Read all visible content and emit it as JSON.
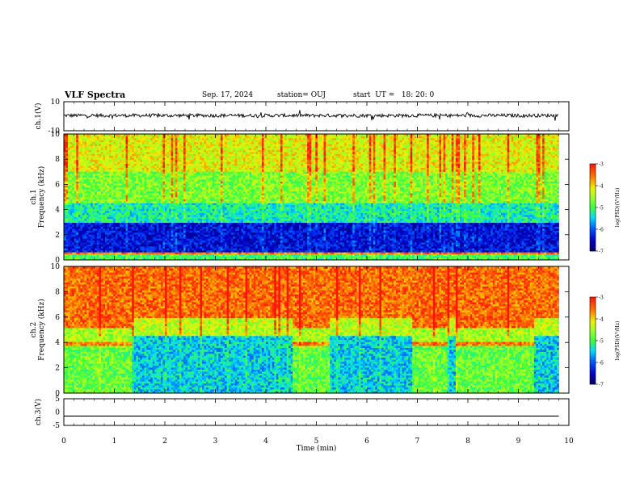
{
  "header": {
    "title": "VLF Spectra",
    "date": "Sep. 17, 2024",
    "station": "station= OUJ",
    "start": "start  UT =   18: 20: 0"
  },
  "colorbar": {
    "label": "log(PSD)(V²/Hz)",
    "ticks": [
      "-3",
      "-4",
      "-5",
      "-6",
      "-7"
    ],
    "range": [
      -7,
      -3
    ]
  },
  "colors": {
    "low": "#00008b",
    "mid_low": "#0040ff",
    "cyan": "#00e0ff",
    "green": "#40ff40",
    "yellow": "#f0f000",
    "red": "#ff2000"
  },
  "chart_data": [
    {
      "type": "line",
      "panel": "ch1-waveform",
      "ylabel": "ch.1(V)",
      "yticks": [
        "10",
        "-10"
      ],
      "ylim": [
        -10,
        10
      ],
      "xlim": [
        0,
        10
      ],
      "baseline": 0.5,
      "noise_amplitude": 1.2
    },
    {
      "type": "heatmap",
      "panel": "ch1-spectrogram",
      "ylabel": "ch.1 Frequency (kHz)",
      "yticks": [
        "0",
        "2",
        "4",
        "6",
        "8",
        "10"
      ],
      "ylim": [
        0,
        10
      ],
      "xlim": [
        0,
        9.8
      ],
      "bands": [
        {
          "f_range": [
            0,
            0.4
          ],
          "level": -5.0
        },
        {
          "f_range": [
            0.4,
            0.6
          ],
          "level": -3.6
        },
        {
          "f_range": [
            0.6,
            3.0
          ],
          "level": -6.4
        },
        {
          "f_range": [
            3.0,
            4.6
          ],
          "level": -5.3
        },
        {
          "f_range": [
            4.6,
            7.0
          ],
          "level": -4.7
        },
        {
          "f_range": [
            7.0,
            10
          ],
          "level": -4.2
        }
      ]
    },
    {
      "type": "heatmap",
      "panel": "ch2-spectrogram",
      "ylabel": "ch.2 Frequency (kHz)",
      "yticks": [
        "0",
        "2",
        "4",
        "6",
        "8",
        "10"
      ],
      "ylim": [
        0,
        10
      ],
      "xlim": [
        0,
        9.8
      ],
      "line_kHz": 3.9,
      "quiet_intervals_min": [
        [
          1.35,
          4.55
        ],
        [
          5.25,
          6.9
        ],
        [
          7.6,
          7.75
        ],
        [
          9.3,
          9.8
        ]
      ],
      "bands_active": [
        {
          "f_range": [
            0,
            3.8
          ],
          "level": -4.8
        },
        {
          "f_range": [
            3.8,
            4.0
          ],
          "level": -3.6
        },
        {
          "f_range": [
            4.0,
            5.2
          ],
          "level": -4.5
        },
        {
          "f_range": [
            5.2,
            10
          ],
          "level": -3.5
        }
      ],
      "bands_quiet": [
        {
          "f_range": [
            0,
            4.6
          ],
          "level": -5.5
        },
        {
          "f_range": [
            4.6,
            6.0
          ],
          "level": -4.4
        },
        {
          "f_range": [
            6.0,
            10
          ],
          "level": -3.5
        }
      ]
    },
    {
      "type": "line",
      "panel": "ch3-waveform",
      "ylabel": "ch.3(V)",
      "yticks": [
        "5",
        "0",
        "-5"
      ],
      "ylim": [
        -5,
        5
      ],
      "xlim": [
        0,
        10
      ],
      "value": -1.5,
      "xlabel": "Time  (min)",
      "xticks": [
        "0",
        "1",
        "2",
        "3",
        "4",
        "5",
        "6",
        "7",
        "8",
        "9",
        "10"
      ]
    }
  ]
}
